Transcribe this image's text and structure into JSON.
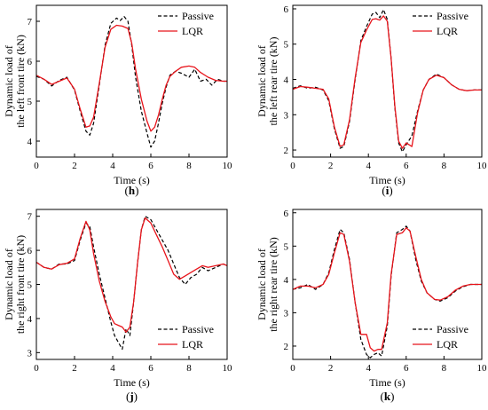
{
  "colors": {
    "passive": "#000000",
    "lqr": "#e8141b",
    "axis": "#000000"
  },
  "chart_data": [
    {
      "id": "h",
      "type": "line",
      "panel_label": "h",
      "xlabel": "Time (s)",
      "ylabel_lines": [
        "Dynamic load of",
        "the left front tire (kN)"
      ],
      "xlim": [
        0,
        10
      ],
      "ylim": [
        3.6,
        7.4
      ],
      "xticks": [
        0,
        2,
        4,
        6,
        8,
        10
      ],
      "yticks": [
        4,
        5,
        6,
        7
      ],
      "legend_position": "top-right",
      "series": [
        {
          "name": "Passive",
          "style": "dashed",
          "color": "#000000",
          "x": [
            0,
            0.4,
            0.8,
            1.2,
            1.6,
            2.0,
            2.3,
            2.6,
            2.8,
            3.0,
            3.3,
            3.6,
            3.9,
            4.2,
            4.4,
            4.6,
            4.8,
            5.0,
            5.2,
            5.5,
            5.8,
            6.0,
            6.2,
            6.4,
            6.6,
            6.8,
            7.0,
            7.3,
            7.6,
            8.0,
            8.3,
            8.6,
            8.9,
            9.2,
            9.5,
            9.8,
            10
          ],
          "y": [
            5.62,
            5.55,
            5.38,
            5.52,
            5.6,
            5.28,
            4.75,
            4.25,
            4.15,
            4.45,
            5.4,
            6.4,
            6.95,
            7.08,
            7.02,
            7.12,
            7.0,
            6.4,
            5.6,
            4.75,
            4.2,
            3.85,
            4.0,
            4.45,
            4.95,
            5.35,
            5.65,
            5.75,
            5.7,
            5.6,
            5.8,
            5.5,
            5.55,
            5.4,
            5.55,
            5.5,
            5.5
          ]
        },
        {
          "name": "LQR",
          "style": "solid",
          "color": "#e8141b",
          "x": [
            0,
            0.4,
            0.8,
            1.2,
            1.6,
            2.0,
            2.3,
            2.6,
            2.8,
            3.0,
            3.3,
            3.6,
            3.9,
            4.2,
            4.5,
            4.8,
            5.0,
            5.2,
            5.5,
            5.8,
            6.0,
            6.2,
            6.4,
            6.6,
            6.8,
            7.0,
            7.3,
            7.6,
            8.0,
            8.3,
            8.6,
            9.0,
            9.4,
            9.8,
            10
          ],
          "y": [
            5.65,
            5.55,
            5.42,
            5.5,
            5.58,
            5.3,
            4.8,
            4.35,
            4.38,
            4.6,
            5.45,
            6.35,
            6.8,
            6.9,
            6.88,
            6.82,
            6.45,
            5.8,
            5.05,
            4.5,
            4.25,
            4.35,
            4.65,
            5.05,
            5.4,
            5.62,
            5.75,
            5.85,
            5.88,
            5.85,
            5.72,
            5.6,
            5.52,
            5.5,
            5.5
          ]
        }
      ]
    },
    {
      "id": "i",
      "type": "line",
      "panel_label": "i",
      "xlabel": "Time (s)",
      "ylabel_lines": [
        "Dynamic load of",
        "the left rear tire (kN)"
      ],
      "xlim": [
        0,
        10
      ],
      "ylim": [
        1.8,
        6.1
      ],
      "xticks": [
        0,
        2,
        4,
        6,
        8,
        10
      ],
      "yticks": [
        2,
        3,
        4,
        5,
        6
      ],
      "legend_position": "top-right",
      "series": [
        {
          "name": "Passive",
          "style": "dashed",
          "color": "#000000",
          "x": [
            0,
            0.4,
            0.8,
            1.2,
            1.6,
            1.9,
            2.2,
            2.5,
            2.7,
            3.0,
            3.3,
            3.6,
            3.9,
            4.2,
            4.4,
            4.6,
            4.8,
            5.0,
            5.2,
            5.4,
            5.6,
            5.8,
            6.0,
            6.3,
            6.6,
            6.9,
            7.2,
            7.6,
            8.0,
            8.4,
            8.8,
            9.2,
            9.6,
            10
          ],
          "y": [
            3.75,
            3.82,
            3.75,
            3.78,
            3.7,
            3.4,
            2.6,
            2.05,
            2.1,
            2.8,
            4.0,
            5.1,
            5.5,
            5.85,
            5.9,
            5.75,
            5.98,
            5.7,
            4.6,
            3.2,
            2.2,
            1.95,
            2.15,
            2.4,
            3.1,
            3.7,
            4.0,
            4.15,
            4.05,
            3.85,
            3.72,
            3.68,
            3.7,
            3.7
          ]
        },
        {
          "name": "LQR",
          "style": "solid",
          "color": "#e8141b",
          "x": [
            0,
            0.4,
            0.8,
            1.2,
            1.6,
            1.9,
            2.2,
            2.5,
            2.7,
            3.0,
            3.3,
            3.6,
            3.9,
            4.2,
            4.4,
            4.6,
            4.8,
            5.0,
            5.2,
            5.4,
            5.6,
            5.8,
            6.0,
            6.3,
            6.6,
            6.9,
            7.2,
            7.6,
            8.0,
            8.4,
            8.8,
            9.2,
            9.6,
            10
          ],
          "y": [
            3.72,
            3.8,
            3.78,
            3.75,
            3.72,
            3.45,
            2.65,
            2.1,
            2.15,
            2.85,
            4.05,
            5.05,
            5.4,
            5.7,
            5.72,
            5.68,
            5.8,
            5.65,
            4.6,
            3.25,
            2.25,
            2.05,
            2.2,
            2.1,
            3.05,
            3.7,
            4.0,
            4.12,
            4.05,
            3.85,
            3.72,
            3.68,
            3.7,
            3.7
          ]
        }
      ]
    },
    {
      "id": "j",
      "type": "line",
      "panel_label": "j",
      "xlabel": "Time (s)",
      "ylabel_lines": [
        "Dynamic load of",
        "the right front tire (kN)"
      ],
      "xlim": [
        0,
        10
      ],
      "ylim": [
        2.8,
        7.2
      ],
      "xticks": [
        0,
        2,
        4,
        6,
        8,
        10
      ],
      "yticks": [
        3,
        4,
        5,
        6,
        7
      ],
      "legend_position": "bottom-right",
      "series": [
        {
          "name": "Passive",
          "style": "dashed",
          "color": "#000000",
          "x": [
            0,
            0.4,
            0.8,
            1.2,
            1.6,
            2.0,
            2.3,
            2.6,
            2.8,
            3.0,
            3.3,
            3.6,
            3.9,
            4.1,
            4.3,
            4.5,
            4.7,
            4.9,
            5.1,
            5.3,
            5.5,
            5.7,
            6.0,
            6.3,
            6.6,
            6.9,
            7.2,
            7.5,
            7.8,
            8.1,
            8.4,
            8.7,
            9.0,
            9.4,
            9.8,
            10
          ],
          "y": [
            5.65,
            5.5,
            5.45,
            5.6,
            5.6,
            5.7,
            6.3,
            6.8,
            6.7,
            6.1,
            5.3,
            4.6,
            3.9,
            3.5,
            3.3,
            3.1,
            3.7,
            3.5,
            4.5,
            5.6,
            6.6,
            7.0,
            6.9,
            6.6,
            6.3,
            6.0,
            5.6,
            5.2,
            5.0,
            5.2,
            5.3,
            5.5,
            5.4,
            5.5,
            5.6,
            5.55
          ]
        },
        {
          "name": "LQR",
          "style": "solid",
          "color": "#e8141b",
          "x": [
            0,
            0.4,
            0.8,
            1.2,
            1.6,
            2.0,
            2.3,
            2.6,
            2.8,
            3.0,
            3.3,
            3.6,
            3.9,
            4.1,
            4.3,
            4.5,
            4.7,
            4.9,
            5.1,
            5.3,
            5.5,
            5.7,
            6.0,
            6.3,
            6.6,
            6.9,
            7.2,
            7.5,
            7.8,
            8.1,
            8.4,
            8.7,
            9.0,
            9.4,
            9.8,
            10
          ],
          "y": [
            5.65,
            5.5,
            5.45,
            5.58,
            5.62,
            5.75,
            6.35,
            6.85,
            6.6,
            5.9,
            5.1,
            4.5,
            4.05,
            3.85,
            3.8,
            3.75,
            3.6,
            3.75,
            4.5,
            5.6,
            6.6,
            6.95,
            6.8,
            6.45,
            6.1,
            5.7,
            5.3,
            5.15,
            5.25,
            5.35,
            5.45,
            5.55,
            5.5,
            5.55,
            5.6,
            5.55
          ]
        }
      ]
    },
    {
      "id": "k",
      "type": "line",
      "panel_label": "k",
      "xlabel": "Time (s)",
      "ylabel_lines": [
        "Dynamic load of",
        "the right rear tire (kN)"
      ],
      "xlim": [
        0,
        10
      ],
      "ylim": [
        1.6,
        6.1
      ],
      "xticks": [
        0,
        2,
        4,
        6,
        8,
        10
      ],
      "yticks": [
        2,
        3,
        4,
        5,
        6
      ],
      "legend_position": "bottom-right",
      "series": [
        {
          "name": "Passive",
          "style": "dashed",
          "color": "#000000",
          "x": [
            0,
            0.4,
            0.8,
            1.2,
            1.6,
            1.9,
            2.2,
            2.5,
            2.7,
            3.0,
            3.3,
            3.6,
            3.9,
            4.1,
            4.3,
            4.5,
            4.7,
            5.0,
            5.2,
            5.5,
            5.8,
            6.0,
            6.2,
            6.5,
            6.8,
            7.1,
            7.5,
            7.8,
            8.2,
            8.6,
            9.0,
            9.4,
            9.8,
            10
          ],
          "y": [
            3.7,
            3.75,
            3.85,
            3.7,
            3.85,
            4.2,
            4.9,
            5.5,
            5.4,
            4.6,
            3.3,
            2.2,
            1.75,
            1.65,
            1.75,
            1.8,
            1.7,
            2.6,
            4.1,
            5.4,
            5.5,
            5.6,
            5.45,
            4.6,
            3.95,
            3.6,
            3.4,
            3.35,
            3.45,
            3.65,
            3.78,
            3.85,
            3.85,
            3.85
          ]
        },
        {
          "name": "LQR",
          "style": "solid",
          "color": "#e8141b",
          "x": [
            0,
            0.4,
            0.8,
            1.2,
            1.6,
            1.9,
            2.2,
            2.5,
            2.7,
            3.0,
            3.3,
            3.6,
            3.9,
            4.1,
            4.3,
            4.5,
            4.7,
            5.0,
            5.2,
            5.5,
            5.8,
            6.0,
            6.2,
            6.5,
            6.8,
            7.1,
            7.5,
            7.8,
            8.2,
            8.6,
            9.0,
            9.4,
            9.8,
            10
          ],
          "y": [
            3.7,
            3.8,
            3.8,
            3.75,
            3.85,
            4.15,
            4.8,
            5.4,
            5.35,
            4.55,
            3.3,
            2.35,
            2.35,
            1.95,
            1.85,
            1.9,
            1.9,
            2.7,
            4.15,
            5.35,
            5.4,
            5.55,
            5.45,
            4.7,
            4.0,
            3.6,
            3.4,
            3.38,
            3.48,
            3.68,
            3.8,
            3.85,
            3.85,
            3.85
          ]
        }
      ]
    }
  ]
}
